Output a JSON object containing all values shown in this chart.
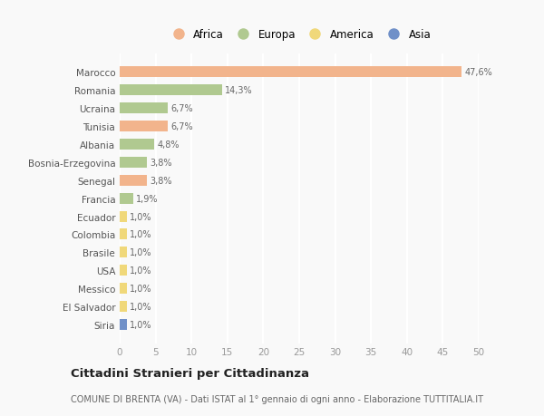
{
  "countries": [
    "Marocco",
    "Romania",
    "Ucraina",
    "Tunisia",
    "Albania",
    "Bosnia-Erzegovina",
    "Senegal",
    "Francia",
    "Ecuador",
    "Colombia",
    "Brasile",
    "USA",
    "Messico",
    "El Salvador",
    "Siria"
  ],
  "values": [
    47.6,
    14.3,
    6.7,
    6.7,
    4.8,
    3.8,
    3.8,
    1.9,
    1.0,
    1.0,
    1.0,
    1.0,
    1.0,
    1.0,
    1.0
  ],
  "labels": [
    "47,6%",
    "14,3%",
    "6,7%",
    "6,7%",
    "4,8%",
    "3,8%",
    "3,8%",
    "1,9%",
    "1,0%",
    "1,0%",
    "1,0%",
    "1,0%",
    "1,0%",
    "1,0%",
    "1,0%"
  ],
  "continents": [
    "Africa",
    "Europa",
    "Europa",
    "Africa",
    "Europa",
    "Europa",
    "Africa",
    "Europa",
    "America",
    "America",
    "America",
    "America",
    "America",
    "America",
    "Asia"
  ],
  "continent_colors": {
    "Africa": "#F2B48C",
    "Europa": "#B0C990",
    "America": "#F0D87A",
    "Asia": "#7090C8"
  },
  "legend_items": [
    "Africa",
    "Europa",
    "America",
    "Asia"
  ],
  "legend_colors": [
    "#F2B48C",
    "#B0C990",
    "#F0D87A",
    "#7090C8"
  ],
  "title": "Cittadini Stranieri per Cittadinanza",
  "subtitle": "COMUNE DI BRENTA (VA) - Dati ISTAT al 1° gennaio di ogni anno - Elaborazione TUTTITALIA.IT",
  "xlim": [
    0,
    50
  ],
  "xticks": [
    0,
    5,
    10,
    15,
    20,
    25,
    30,
    35,
    40,
    45,
    50
  ],
  "background_color": "#f9f9f9",
  "grid_color": "#ffffff",
  "bar_height": 0.6
}
